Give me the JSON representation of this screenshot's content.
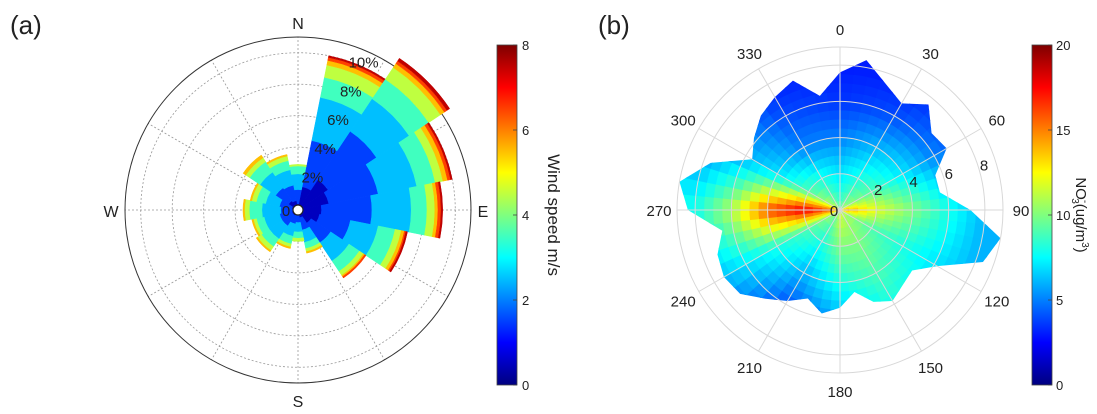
{
  "panels": {
    "a_label": "(a)",
    "b_label": "(b)"
  },
  "chart_data": [
    {
      "type": "polar-bar",
      "panel": "(a)",
      "direction_labels": [
        "N",
        "E",
        "S",
        "W"
      ],
      "radial_ticks": [
        "0",
        "2%",
        "4%",
        "6%",
        "8%",
        "10%"
      ],
      "radial_max_percent": 11,
      "colorbar": {
        "label": "Wind speed m/s",
        "min": 0,
        "max": 8,
        "ticks": [
          "0",
          "2",
          "4",
          "6",
          "8"
        ]
      },
      "speed_bins": [
        0.5,
        1.5,
        2.5,
        3.5,
        4.5,
        5.5,
        6.5,
        7.5
      ],
      "sectors_deg": [
        0,
        22.5,
        45,
        67.5,
        90,
        112.5,
        135,
        157.5,
        180,
        202.5,
        225,
        247.5,
        270,
        292.5,
        315,
        337.5
      ],
      "frequency_percent": [
        [
          0.4,
          0.9,
          1.0,
          0.5,
          0.1,
          0.0,
          0.0,
          0.0
        ],
        [
          1.5,
          3.0,
          2.8,
          1.3,
          0.8,
          0.3,
          0.2,
          0.1
        ],
        [
          2.3,
          3.7,
          2.5,
          1.5,
          0.9,
          0.3,
          0.2,
          0.2
        ],
        [
          2.0,
          3.2,
          2.5,
          1.2,
          0.5,
          0.3,
          0.2,
          0.1
        ],
        [
          1.5,
          3.2,
          2.5,
          1.0,
          0.5,
          0.2,
          0.2,
          0.1
        ],
        [
          1.4,
          2.0,
          1.8,
          1.1,
          0.4,
          0.2,
          0.1,
          0.1
        ],
        [
          1.0,
          1.5,
          1.4,
          0.8,
          0.3,
          0.1,
          0.1,
          0.0
        ],
        [
          0.5,
          0.8,
          0.8,
          0.4,
          0.2,
          0.1,
          0.0,
          0.0
        ],
        [
          0.3,
          0.5,
          0.6,
          0.4,
          0.2,
          0.0,
          0.0,
          0.0
        ],
        [
          0.3,
          0.6,
          0.8,
          0.5,
          0.2,
          0.1,
          0.0,
          0.0
        ],
        [
          0.4,
          0.8,
          1.0,
          0.6,
          0.3,
          0.1,
          0.0,
          0.0
        ],
        [
          0.4,
          0.8,
          1.0,
          0.5,
          0.2,
          0.1,
          0.0,
          0.0
        ],
        [
          0.3,
          0.8,
          1.2,
          0.8,
          0.3,
          0.1,
          0.0,
          0.0
        ],
        [
          0.4,
          0.8,
          0.9,
          0.6,
          0.3,
          0.1,
          0.0,
          0.0
        ],
        [
          0.7,
          1.0,
          1.2,
          0.8,
          0.3,
          0.2,
          0.0,
          0.0
        ],
        [
          0.6,
          1.0,
          1.0,
          0.6,
          0.3,
          0.1,
          0.0,
          0.0
        ]
      ]
    },
    {
      "type": "polar-heatmap",
      "panel": "(b)",
      "angle_labels": [
        "0",
        "30",
        "60",
        "90",
        "120",
        "150",
        "180",
        "210",
        "240",
        "270",
        "300",
        "330"
      ],
      "radial_ticks": [
        "0",
        "2",
        "4",
        "6",
        "8"
      ],
      "radial_max": 9,
      "colorbar": {
        "label": "NO3-(ug/m3)",
        "min": 0,
        "max": 20,
        "ticks": [
          "0",
          "5",
          "10",
          "15",
          "20"
        ]
      },
      "extent_radius": [
        7.6,
        8.4,
        7.4,
        6.8,
        7.6,
        6.6,
        6.8,
        5.6,
        5.6,
        7.2,
        9.0,
        8.4,
        6.2,
        5.2,
        5.4,
        5.8,
        5.4,
        4.6,
        5.4,
        5.8,
        5.2,
        5.8,
        6.4,
        7.2,
        7.4,
        7.2,
        6.6,
        8.4,
        9.0,
        7.6,
        5.6,
        6.2,
        6.8,
        7.2,
        7.6,
        6.4
      ],
      "concentration_by_angle_deg": [
        {
          "angle": 0,
          "profile": [
            9,
            7,
            5,
            3.5,
            3
          ]
        },
        {
          "angle": 30,
          "profile": [
            10,
            8,
            6,
            4,
            3
          ]
        },
        {
          "angle": 60,
          "profile": [
            11,
            9,
            7,
            5,
            4
          ]
        },
        {
          "angle": 90,
          "profile": [
            15,
            12,
            10,
            8,
            6
          ]
        },
        {
          "angle": 120,
          "profile": [
            11,
            9,
            8,
            7,
            6
          ]
        },
        {
          "angle": 150,
          "profile": [
            11,
            10,
            9,
            8,
            7
          ]
        },
        {
          "angle": 180,
          "profile": [
            12,
            10,
            8,
            6,
            5
          ]
        },
        {
          "angle": 210,
          "profile": [
            10,
            8,
            6,
            4,
            3
          ]
        },
        {
          "angle": 240,
          "profile": [
            11,
            9,
            8,
            7,
            6
          ]
        },
        {
          "angle": 270,
          "profile": [
            15,
            18,
            16,
            11,
            8
          ]
        },
        {
          "angle": 300,
          "profile": [
            12,
            9,
            7,
            6,
            5
          ]
        },
        {
          "angle": 330,
          "profile": [
            10,
            8,
            5,
            4,
            3
          ]
        }
      ]
    }
  ]
}
